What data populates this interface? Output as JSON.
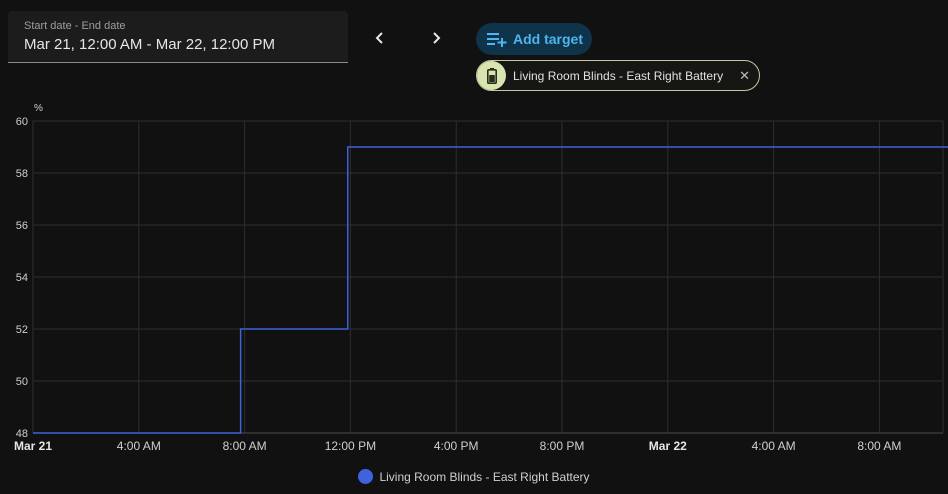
{
  "date_range": {
    "label": "Start date - End date",
    "value": "Mar 21, 12:00 AM - Mar 22, 12:00 PM"
  },
  "add_target": {
    "label": "Add target"
  },
  "target_chip": {
    "label": "Living Room Blinds - East Right Battery",
    "close": "✕"
  },
  "colors": {
    "accent": "#4fb4f0",
    "series": "#3e63dd",
    "chip_bg": "#d9e5b0"
  },
  "chart_data": {
    "type": "line",
    "ylabel": "%",
    "ylim": [
      48,
      60
    ],
    "y_ticks": [
      "48",
      "50",
      "52",
      "54",
      "56",
      "58",
      "60"
    ],
    "x_ticks": [
      {
        "label": "Mar 21",
        "hour": 0,
        "bold": true
      },
      {
        "label": "4:00 AM",
        "hour": 4
      },
      {
        "label": "8:00 AM",
        "hour": 8
      },
      {
        "label": "12:00 PM",
        "hour": 12
      },
      {
        "label": "4:00 PM",
        "hour": 16
      },
      {
        "label": "8:00 PM",
        "hour": 20
      },
      {
        "label": "Mar 22",
        "hour": 24,
        "bold": true
      },
      {
        "label": "4:00 AM",
        "hour": 28
      },
      {
        "label": "8:00 AM",
        "hour": 32
      }
    ],
    "x_range_hours": [
      0,
      35.6
    ],
    "grid": true,
    "legend_position": "bottom",
    "series": [
      {
        "name": "Living Room Blinds - East Right Battery",
        "step": true,
        "points": [
          {
            "hour": 0,
            "value": 48
          },
          {
            "hour": 7.85,
            "value": 52
          },
          {
            "hour": 11.9,
            "value": 59
          },
          {
            "hour": 35.6,
            "value": 59
          }
        ]
      }
    ]
  }
}
